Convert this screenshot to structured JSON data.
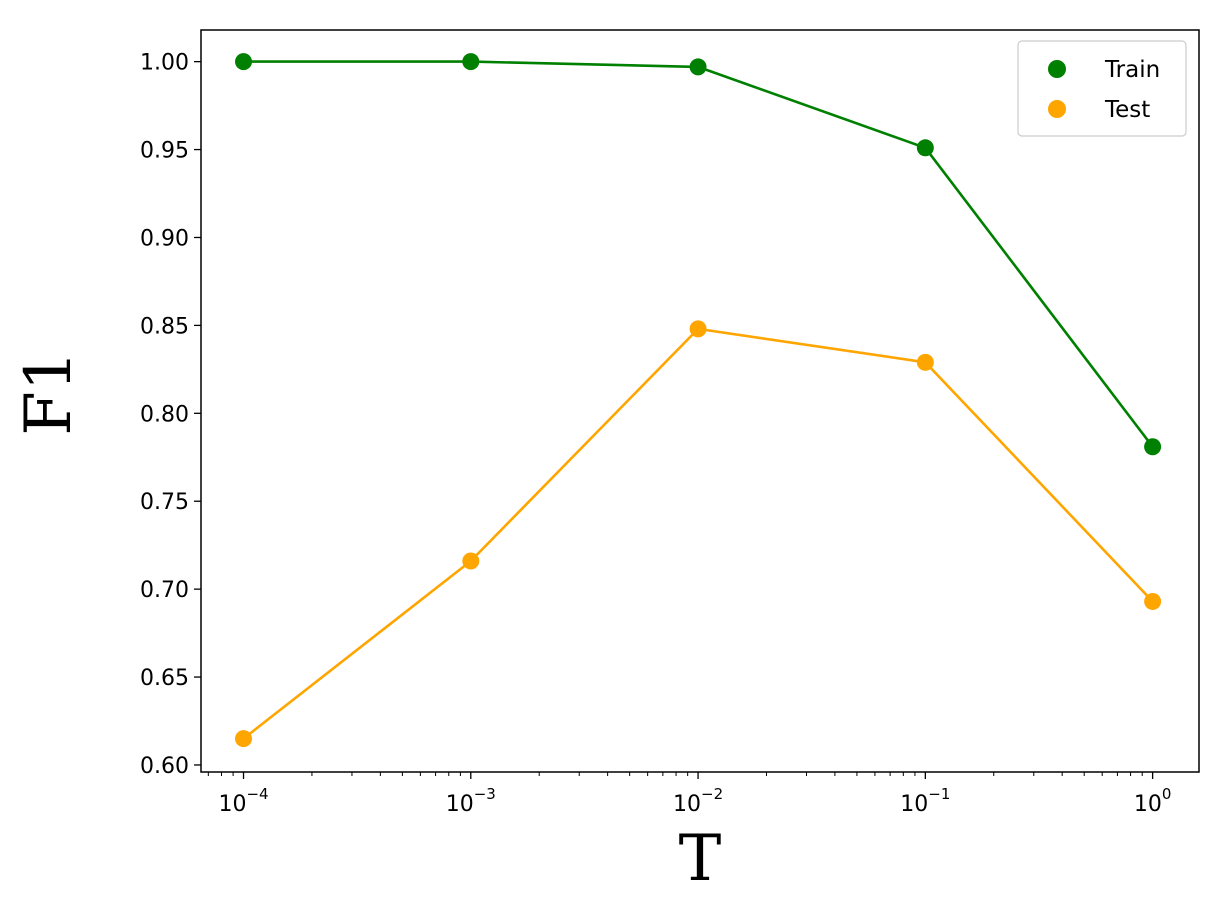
{
  "chart_data": {
    "type": "line",
    "xscale": "log",
    "x": [
      0.0001,
      0.001,
      0.01,
      0.1,
      1
    ],
    "x_tick_labels": [
      {
        "base": "10",
        "exp": "−4"
      },
      {
        "base": "10",
        "exp": "−3"
      },
      {
        "base": "10",
        "exp": "−2"
      },
      {
        "base": "10",
        "exp": "−1"
      },
      {
        "base": "10",
        "exp": "0"
      }
    ],
    "y_ticks": [
      0.6,
      0.65,
      0.7,
      0.75,
      0.8,
      0.85,
      0.9,
      0.95,
      1.0
    ],
    "y_tick_labels": [
      "0.60",
      "0.65",
      "0.70",
      "0.75",
      "0.80",
      "0.85",
      "0.90",
      "0.95",
      "1.00"
    ],
    "xlim": [
      6.5e-05,
      1.6
    ],
    "ylim": [
      0.596,
      1.018
    ],
    "xlabel": "T",
    "ylabel": "F1",
    "title": "",
    "grid": false,
    "legend": {
      "position": "top-right"
    },
    "series": [
      {
        "name": "Train",
        "color": "#008000",
        "values": [
          1.0,
          1.0,
          0.997,
          0.951,
          0.781
        ]
      },
      {
        "name": "Test",
        "color": "#FFA500",
        "values": [
          0.615,
          0.716,
          0.848,
          0.829,
          0.693
        ]
      }
    ]
  }
}
